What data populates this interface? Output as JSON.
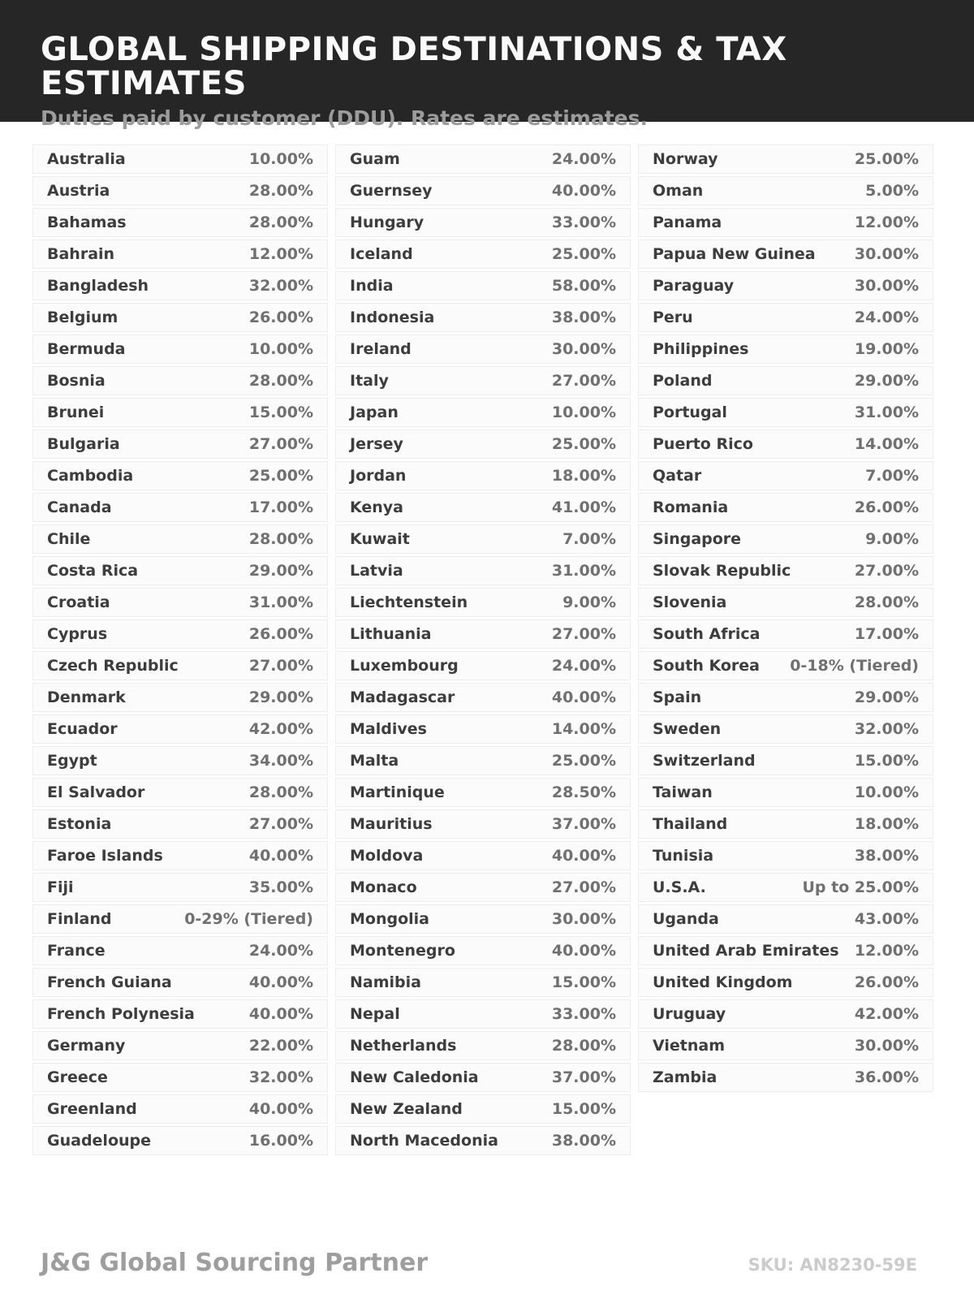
{
  "header": {
    "title": "GLOBAL SHIPPING DESTINATIONS & TAX ESTIMATES",
    "subtitle": "Duties paid by customer (DDU). Rates are estimates."
  },
  "colors": {
    "header_bg": "#262626",
    "title_text": "#fafafa",
    "subtitle_text": "#9c9c9c",
    "row_bg": "#fbfbfb",
    "row_border": "#ededed",
    "country_text": "#3d3d3d",
    "rate_text": "#707070"
  },
  "table": {
    "columns": [
      [
        {
          "country": "Australia",
          "rate": "10.00%"
        },
        {
          "country": "Austria",
          "rate": "28.00%"
        },
        {
          "country": "Bahamas",
          "rate": "28.00%"
        },
        {
          "country": "Bahrain",
          "rate": "12.00%"
        },
        {
          "country": "Bangladesh",
          "rate": "32.00%"
        },
        {
          "country": "Belgium",
          "rate": "26.00%"
        },
        {
          "country": "Bermuda",
          "rate": "10.00%"
        },
        {
          "country": "Bosnia",
          "rate": "28.00%"
        },
        {
          "country": "Brunei",
          "rate": "15.00%"
        },
        {
          "country": "Bulgaria",
          "rate": "27.00%"
        },
        {
          "country": "Cambodia",
          "rate": "25.00%"
        },
        {
          "country": "Canada",
          "rate": "17.00%"
        },
        {
          "country": "Chile",
          "rate": "28.00%"
        },
        {
          "country": "Costa Rica",
          "rate": "29.00%"
        },
        {
          "country": "Croatia",
          "rate": "31.00%"
        },
        {
          "country": "Cyprus",
          "rate": "26.00%"
        },
        {
          "country": "Czech Republic",
          "rate": "27.00%"
        },
        {
          "country": "Denmark",
          "rate": "29.00%"
        },
        {
          "country": "Ecuador",
          "rate": "42.00%"
        },
        {
          "country": "Egypt",
          "rate": "34.00%"
        },
        {
          "country": "El Salvador",
          "rate": "28.00%"
        },
        {
          "country": "Estonia",
          "rate": "27.00%"
        },
        {
          "country": "Faroe Islands",
          "rate": "40.00%"
        },
        {
          "country": "Fiji",
          "rate": "35.00%"
        },
        {
          "country": "Finland",
          "rate": "0-29% (Tiered)"
        },
        {
          "country": "France",
          "rate": "24.00%"
        },
        {
          "country": "French Guiana",
          "rate": "40.00%"
        },
        {
          "country": "French Polynesia",
          "rate": "40.00%"
        },
        {
          "country": "Germany",
          "rate": "22.00%"
        },
        {
          "country": "Greece",
          "rate": "32.00%"
        },
        {
          "country": "Greenland",
          "rate": "40.00%"
        },
        {
          "country": "Guadeloupe",
          "rate": "16.00%"
        }
      ],
      [
        {
          "country": "Guam",
          "rate": "24.00%"
        },
        {
          "country": "Guernsey",
          "rate": "40.00%"
        },
        {
          "country": "Hungary",
          "rate": "33.00%"
        },
        {
          "country": "Iceland",
          "rate": "25.00%"
        },
        {
          "country": "India",
          "rate": "58.00%"
        },
        {
          "country": "Indonesia",
          "rate": "38.00%"
        },
        {
          "country": "Ireland",
          "rate": "30.00%"
        },
        {
          "country": "Italy",
          "rate": "27.00%"
        },
        {
          "country": "Japan",
          "rate": "10.00%"
        },
        {
          "country": "Jersey",
          "rate": "25.00%"
        },
        {
          "country": "Jordan",
          "rate": "18.00%"
        },
        {
          "country": "Kenya",
          "rate": "41.00%"
        },
        {
          "country": "Kuwait",
          "rate": "7.00%"
        },
        {
          "country": "Latvia",
          "rate": "31.00%"
        },
        {
          "country": "Liechtenstein",
          "rate": "9.00%"
        },
        {
          "country": "Lithuania",
          "rate": "27.00%"
        },
        {
          "country": "Luxembourg",
          "rate": "24.00%"
        },
        {
          "country": "Madagascar",
          "rate": "40.00%"
        },
        {
          "country": "Maldives",
          "rate": "14.00%"
        },
        {
          "country": "Malta",
          "rate": "25.00%"
        },
        {
          "country": "Martinique",
          "rate": "28.50%"
        },
        {
          "country": "Mauritius",
          "rate": "37.00%"
        },
        {
          "country": "Moldova",
          "rate": "40.00%"
        },
        {
          "country": "Monaco",
          "rate": "27.00%"
        },
        {
          "country": "Mongolia",
          "rate": "30.00%"
        },
        {
          "country": "Montenegro",
          "rate": "40.00%"
        },
        {
          "country": "Namibia",
          "rate": "15.00%"
        },
        {
          "country": "Nepal",
          "rate": "33.00%"
        },
        {
          "country": "Netherlands",
          "rate": "28.00%"
        },
        {
          "country": "New Caledonia",
          "rate": "37.00%"
        },
        {
          "country": "New Zealand",
          "rate": "15.00%"
        },
        {
          "country": "North Macedonia",
          "rate": "38.00%"
        }
      ],
      [
        {
          "country": "Norway",
          "rate": "25.00%"
        },
        {
          "country": "Oman",
          "rate": "5.00%"
        },
        {
          "country": "Panama",
          "rate": "12.00%"
        },
        {
          "country": "Papua New Guinea",
          "rate": "30.00%"
        },
        {
          "country": "Paraguay",
          "rate": "30.00%"
        },
        {
          "country": "Peru",
          "rate": "24.00%"
        },
        {
          "country": "Philippines",
          "rate": "19.00%"
        },
        {
          "country": "Poland",
          "rate": "29.00%"
        },
        {
          "country": "Portugal",
          "rate": "31.00%"
        },
        {
          "country": "Puerto Rico",
          "rate": "14.00%"
        },
        {
          "country": "Qatar",
          "rate": "7.00%"
        },
        {
          "country": "Romania",
          "rate": "26.00%"
        },
        {
          "country": "Singapore",
          "rate": "9.00%"
        },
        {
          "country": "Slovak Republic",
          "rate": "27.00%"
        },
        {
          "country": "Slovenia",
          "rate": "28.00%"
        },
        {
          "country": "South Africa",
          "rate": "17.00%"
        },
        {
          "country": "South Korea",
          "rate": "0-18% (Tiered)"
        },
        {
          "country": "Spain",
          "rate": "29.00%"
        },
        {
          "country": "Sweden",
          "rate": "32.00%"
        },
        {
          "country": "Switzerland",
          "rate": "15.00%"
        },
        {
          "country": "Taiwan",
          "rate": "10.00%"
        },
        {
          "country": "Thailand",
          "rate": "18.00%"
        },
        {
          "country": "Tunisia",
          "rate": "38.00%"
        },
        {
          "country": "U.S.A.",
          "rate": "Up to 25.00%"
        },
        {
          "country": "Uganda",
          "rate": "43.00%"
        },
        {
          "country": "United Arab Emirates",
          "rate": "12.00%"
        },
        {
          "country": "United Kingdom",
          "rate": "26.00%"
        },
        {
          "country": "Uruguay",
          "rate": "42.00%"
        },
        {
          "country": "Vietnam",
          "rate": "30.00%"
        },
        {
          "country": "Zambia",
          "rate": "36.00%"
        }
      ]
    ]
  },
  "footer": {
    "brand": "J&G Global Sourcing Partner",
    "sku": "SKU: AN8230-59E"
  }
}
